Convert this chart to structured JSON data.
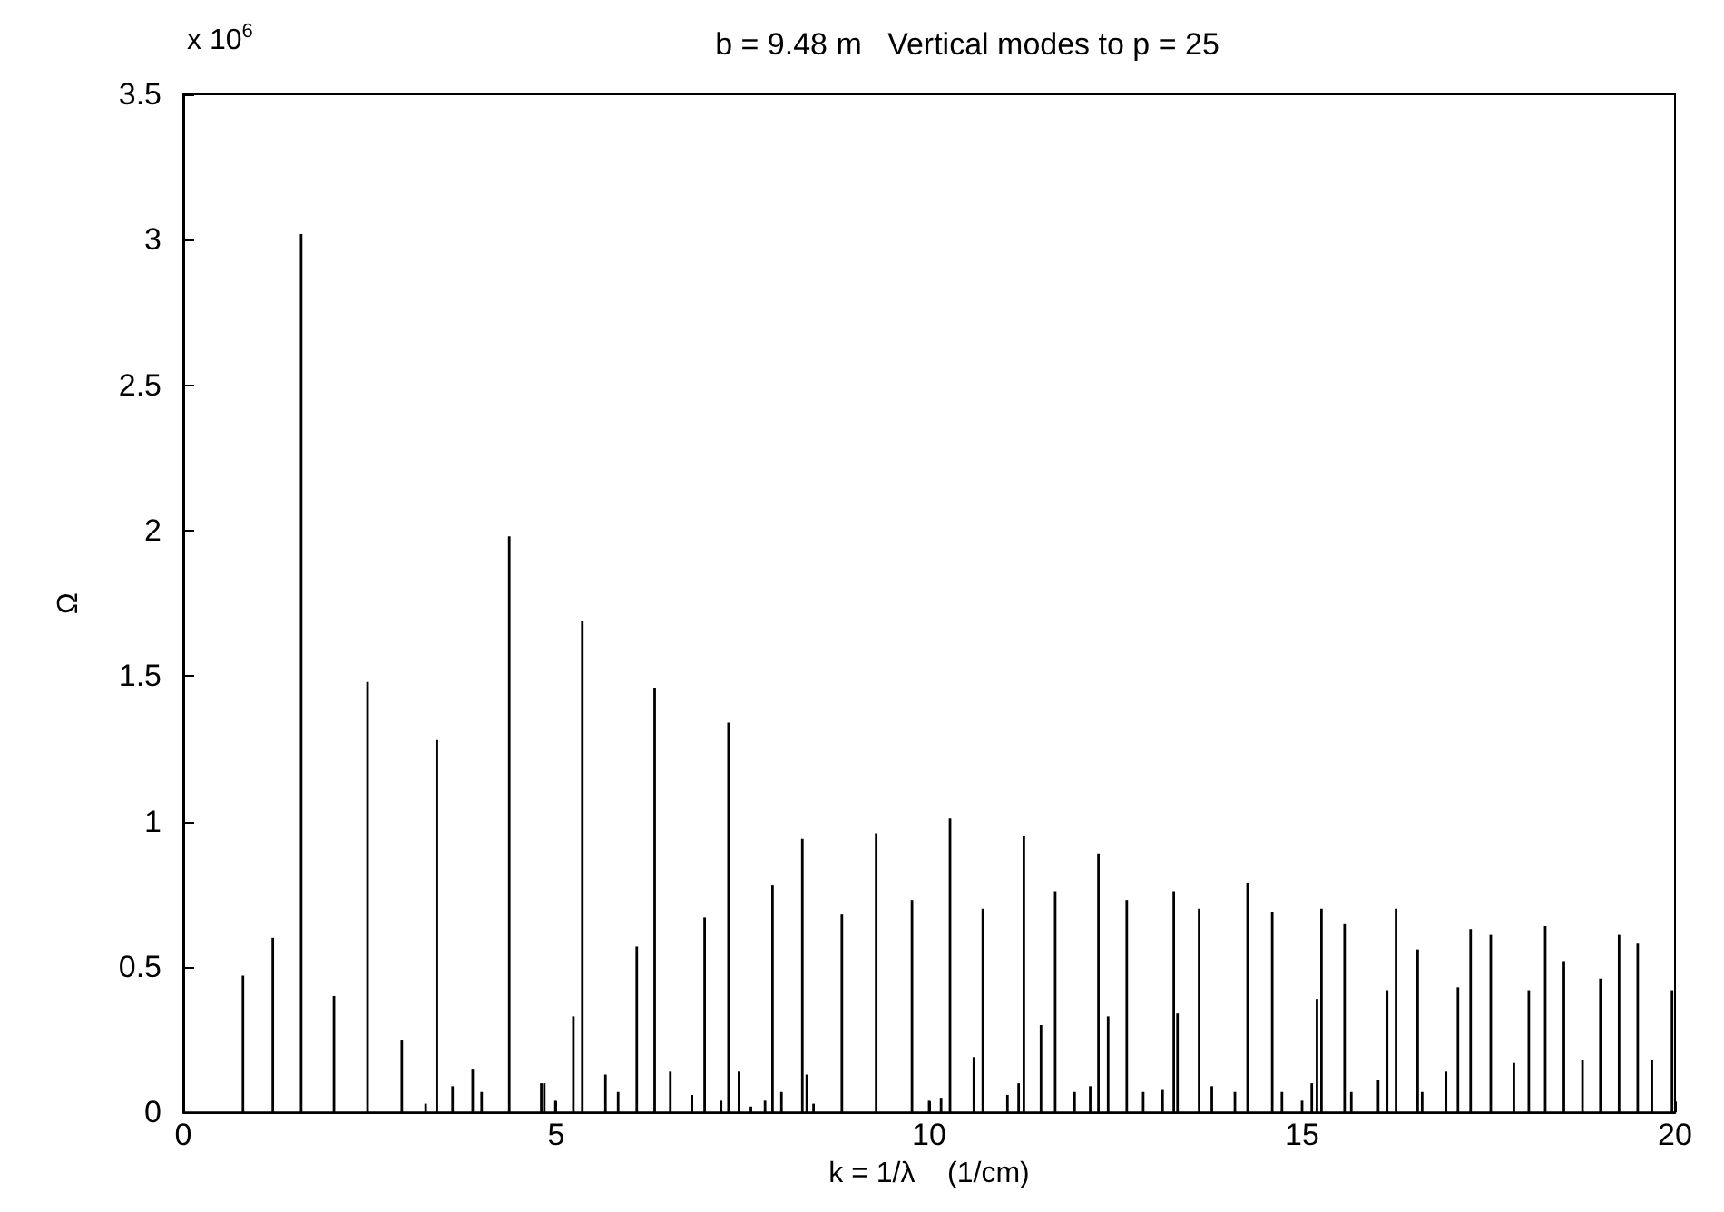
{
  "chart_data": {
    "type": "bar",
    "title": "b = 9.48 m   Vertical modes to p = 25",
    "xlabel": "k = 1/λ    (1/cm)",
    "ylabel": "Ω",
    "annotations": [
      "x 10$^{6}$"
    ],
    "x": [
      0.8,
      1.2,
      1.58,
      2.02,
      2.47,
      2.93,
      3.25,
      3.4,
      3.61,
      3.88,
      4.0,
      4.37,
      4.8,
      4.84,
      4.99,
      5.23,
      5.35,
      5.66,
      5.83,
      6.08,
      6.32,
      6.53,
      6.82,
      6.99,
      7.21,
      7.31,
      7.45,
      7.61,
      7.8,
      7.9,
      8.02,
      8.3,
      8.36,
      8.45,
      8.83,
      9.29,
      9.77,
      10.0,
      10.16,
      10.28,
      10.6,
      10.72,
      11.05,
      11.2,
      11.27,
      11.5,
      11.69,
      11.95,
      12.16,
      12.27,
      12.4,
      12.65,
      12.87,
      13.13,
      13.28,
      13.33,
      13.62,
      13.79,
      14.1,
      14.27,
      14.6,
      14.73,
      15.0,
      15.13,
      15.2,
      15.26,
      15.57,
      15.66,
      16.02,
      16.14,
      16.26,
      16.55,
      16.61,
      16.93,
      17.09,
      17.26,
      17.53,
      17.84,
      18.04,
      18.26,
      18.51,
      18.76,
      19.0,
      19.25,
      19.5,
      19.69,
      19.96
    ],
    "values": [
      0.47,
      0.6,
      3.02,
      0.4,
      1.48,
      0.25,
      0.03,
      1.28,
      0.09,
      0.15,
      0.07,
      1.98,
      0.1,
      0.1,
      0.04,
      0.33,
      1.69,
      0.13,
      0.07,
      0.57,
      1.46,
      0.14,
      0.06,
      0.67,
      0.04,
      1.34,
      0.14,
      0.02,
      0.04,
      0.78,
      0.07,
      0.94,
      0.13,
      0.03,
      0.68,
      0.96,
      0.73,
      0.04,
      0.05,
      1.01,
      0.19,
      0.7,
      0.06,
      0.1,
      0.95,
      0.3,
      0.76,
      0.07,
      0.09,
      0.89,
      0.33,
      0.73,
      0.07,
      0.08,
      0.76,
      0.34,
      0.7,
      0.09,
      0.07,
      0.79,
      0.69,
      0.07,
      0.04,
      0.1,
      0.39,
      0.7,
      0.65,
      0.07,
      0.11,
      0.42,
      0.7,
      0.56,
      0.07,
      0.14,
      0.43,
      0.63,
      0.61,
      0.17,
      0.42,
      0.64,
      0.52,
      0.18,
      0.46,
      0.61,
      0.58,
      0.18,
      0.42
    ],
    "color": "#000000",
    "xlim": [
      0,
      20
    ],
    "xticks": [
      0,
      5,
      10,
      15,
      20
    ],
    "ylim": [
      0,
      3.5
    ],
    "yticks": [
      0,
      0.5,
      1,
      1.5,
      2,
      2.5,
      3,
      3.5
    ],
    "grid": false
  }
}
